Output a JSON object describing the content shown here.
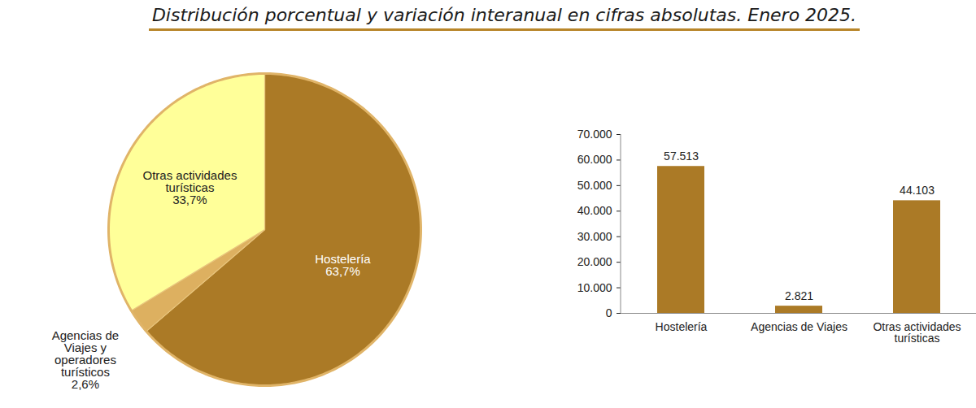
{
  "title": "Distribución porcentual y variación interanual en cifras absolutas. Enero 2025.",
  "chart_data": [
    {
      "type": "pie",
      "categories": [
        "Hostelería",
        "Agencias de Viajes y operadores turísticos",
        "Otras actividades turísticas"
      ],
      "values": [
        63.7,
        2.6,
        33.7
      ],
      "value_labels": [
        "63,7%",
        "2,6%",
        "33,7%"
      ],
      "colors": [
        "#ab7a26",
        "#ddb060",
        "#ffff99"
      ],
      "data_labels": true
    },
    {
      "type": "bar",
      "categories": [
        "Hostelería",
        "Agencias de Viajes",
        "Otras actividades turísticas"
      ],
      "values": [
        57513,
        2821,
        44103
      ],
      "value_labels": [
        "57.513",
        "2.821",
        "44.103"
      ],
      "color": "#ab7a26",
      "ylim": [
        0,
        70000
      ],
      "yticks": [
        0,
        {
          "value": 10000,
          "label": "10.000"
        },
        {
          "value": 20000,
          "label": "20.000"
        },
        {
          "value": 30000,
          "label": "30.000"
        },
        {
          "value": 40000,
          "label": "40.000"
        },
        {
          "value": 50000,
          "label": "50.000"
        },
        {
          "value": 60000,
          "label": "60.000"
        },
        {
          "value": 70000,
          "label": "70.000"
        }
      ],
      "grid": false,
      "data_labels": true
    }
  ]
}
